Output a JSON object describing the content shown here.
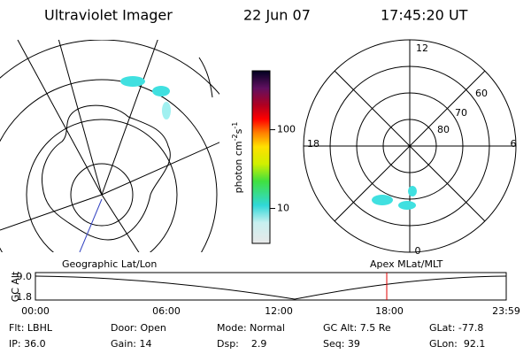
{
  "header": {
    "title": "Ultraviolet Imager",
    "date": "22 Jun 07",
    "time": "17:45:20 UT"
  },
  "colorbar": {
    "unit": [
      "photon cm",
      "-2",
      "s",
      "-1"
    ],
    "range": [
      3.6,
      560
    ],
    "log": true,
    "ticks": [
      10,
      100
    ]
  },
  "polar_plot": {
    "mlt_labels": [
      "12",
      "6",
      "0",
      "18"
    ],
    "lat_labels": [
      "60",
      "70",
      "80"
    ]
  },
  "altitude_plot": {
    "ylabel": "GC Alt",
    "y_labels": [
      "9.0",
      "1.8"
    ],
    "time_labels": [
      "00:00",
      "06:00",
      "12:00",
      "18:00",
      "23:59"
    ],
    "left_label": "Geographic Lat/Lon",
    "right_label": "Apex MLat/MLT"
  },
  "info": [
    [
      "Flt: LBHL",
      "IP: 36.0"
    ],
    [
      "Door: Open",
      "Gain: 14"
    ],
    [
      "Mode: Normal",
      "Dsp:    2.9"
    ],
    [
      "GC Alt: 7.5 Re",
      "Seq: 39"
    ],
    [
      "GLat: -77.8",
      "GLon:  92.1"
    ]
  ]
}
